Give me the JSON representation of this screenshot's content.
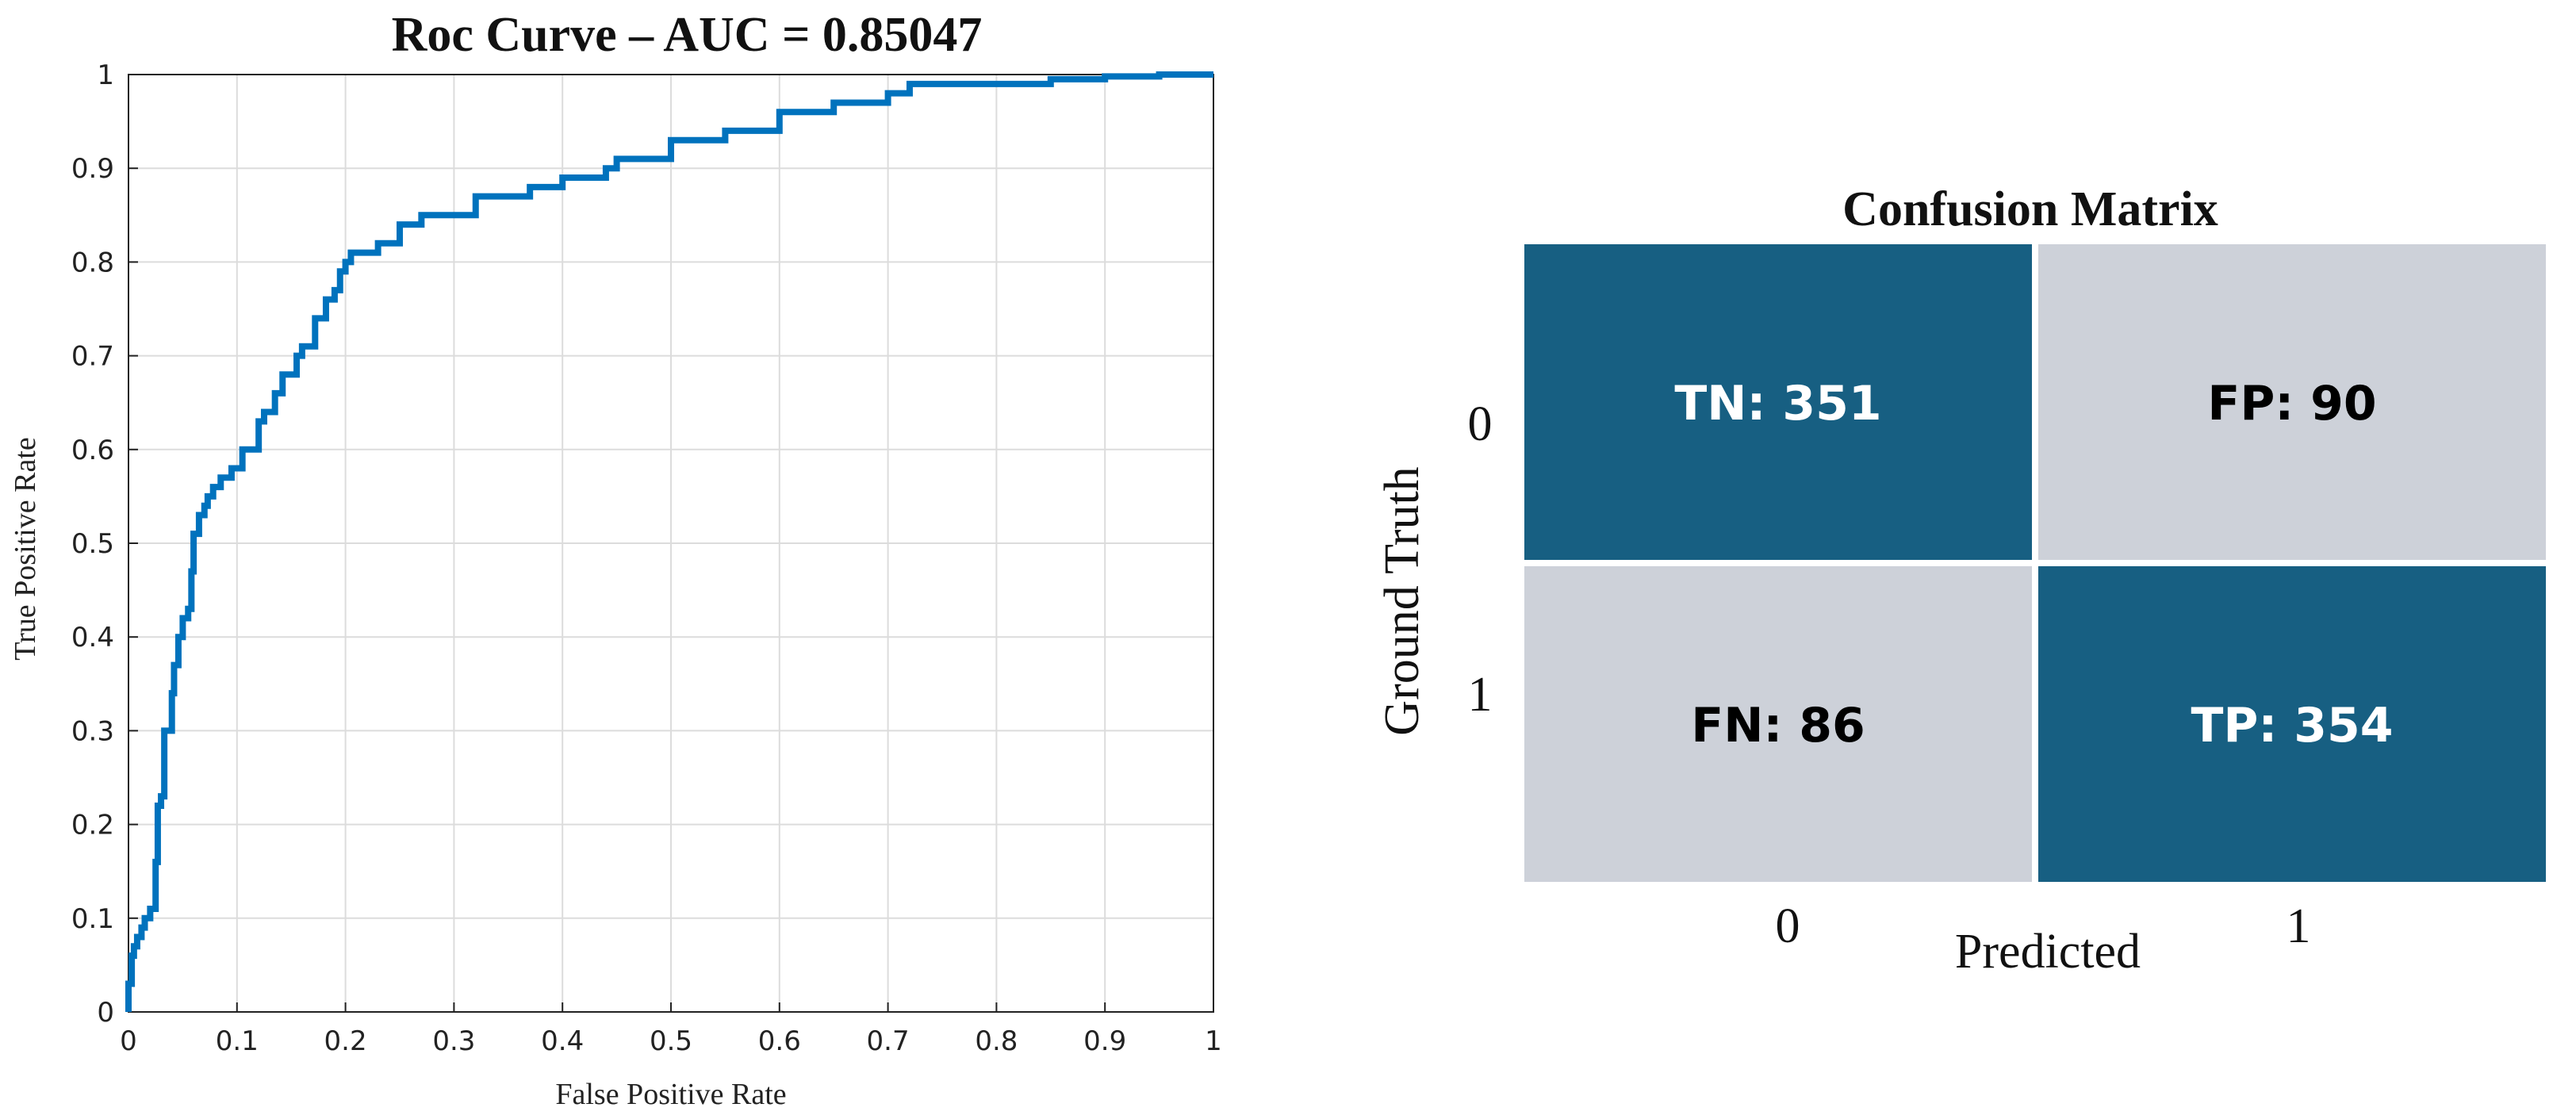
{
  "chart_data": [
    {
      "type": "line",
      "title": "Roc Curve – AUC = 0.85047",
      "xlabel": "False Positive Rate",
      "ylabel": "True Positive Rate",
      "xlim": [
        0,
        1
      ],
      "ylim": [
        0,
        1
      ],
      "grid": true,
      "xticks": [
        "0",
        "0.1",
        "0.2",
        "0.3",
        "0.4",
        "0.5",
        "0.6",
        "0.7",
        "0.8",
        "0.9",
        "1"
      ],
      "yticks": [
        "0",
        "0.1",
        "0.2",
        "0.3",
        "0.4",
        "0.5",
        "0.6",
        "0.7",
        "0.8",
        "0.9",
        "1"
      ],
      "line_color": "#0072BD",
      "series": [
        {
          "x": [
            0,
            0,
            0.003,
            0.005,
            0.008,
            0.012,
            0.015,
            0.02,
            0.025,
            0.027,
            0.03,
            0.033,
            0.04,
            0.042,
            0.046,
            0.05,
            0.055,
            0.058,
            0.06,
            0.065,
            0.07,
            0.073,
            0.078,
            0.085,
            0.095,
            0.1,
            0.105,
            0.12,
            0.125,
            0.135,
            0.142,
            0.155,
            0.16,
            0.172,
            0.182,
            0.19,
            0.195,
            0.2,
            0.205,
            0.21,
            0.23,
            0.25,
            0.27,
            0.3,
            0.32,
            0.35,
            0.37,
            0.4,
            0.44,
            0.45,
            0.5,
            0.55,
            0.6,
            0.65,
            0.7,
            0.72,
            0.74,
            0.8,
            0.85,
            0.9,
            0.95,
            1
          ],
          "y": [
            0,
            0.03,
            0.06,
            0.07,
            0.08,
            0.09,
            0.1,
            0.11,
            0.16,
            0.22,
            0.23,
            0.3,
            0.34,
            0.37,
            0.4,
            0.42,
            0.43,
            0.47,
            0.51,
            0.53,
            0.54,
            0.55,
            0.56,
            0.57,
            0.58,
            0.58,
            0.6,
            0.63,
            0.64,
            0.66,
            0.68,
            0.7,
            0.71,
            0.74,
            0.76,
            0.77,
            0.79,
            0.8,
            0.81,
            0.81,
            0.82,
            0.84,
            0.85,
            0.85,
            0.87,
            0.87,
            0.88,
            0.89,
            0.9,
            0.91,
            0.93,
            0.94,
            0.96,
            0.97,
            0.98,
            0.99,
            0.99,
            0.99,
            0.995,
            0.998,
            1.0,
            1.0
          ]
        }
      ]
    },
    {
      "type": "heatmap",
      "title": "Confusion Matrix",
      "xlabel": "Predicted",
      "ylabel": "Ground Truth",
      "x_categories": [
        "0",
        "1"
      ],
      "y_categories": [
        "0",
        "1"
      ],
      "cells": [
        [
          {
            "label": "TN",
            "value": 351,
            "text": "TN: 351"
          },
          {
            "label": "FP",
            "value": 90,
            "text": "FP: 90"
          }
        ],
        [
          {
            "label": "FN",
            "value": 86,
            "text": "FN: 86"
          },
          {
            "label": "TP",
            "value": 354,
            "text": "TP: 354"
          }
        ]
      ],
      "colors": {
        "high": "#175F82",
        "low": "#CDD1D9",
        "high_text": "#FFFFFF",
        "low_text": "#000000"
      }
    }
  ]
}
